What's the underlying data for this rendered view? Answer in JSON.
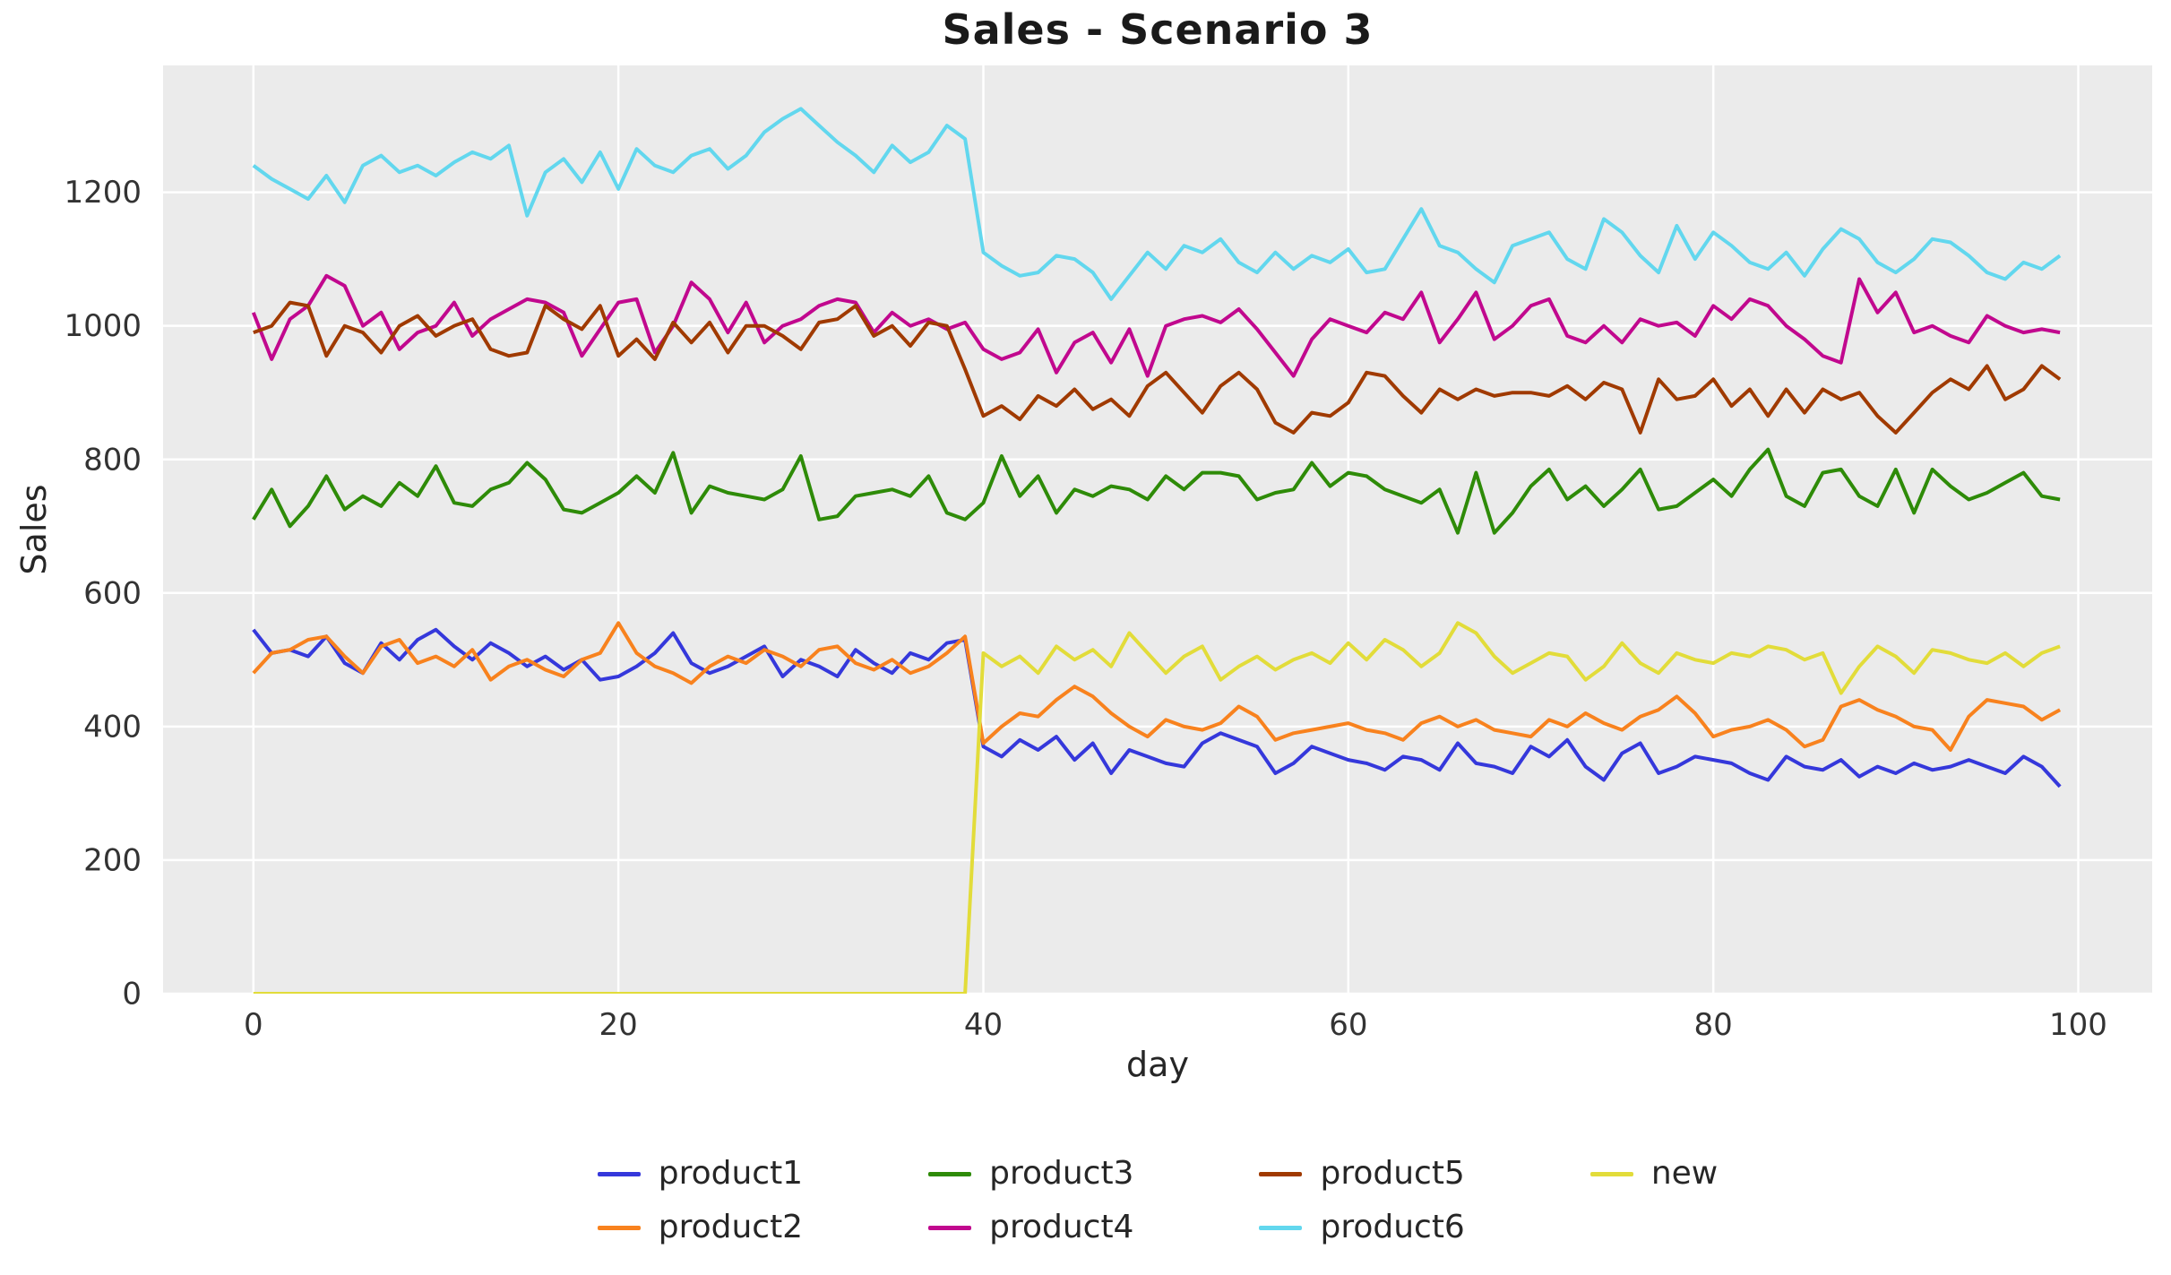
{
  "title": "Sales - Scenario 3",
  "chart_data": {
    "type": "line",
    "title": "Sales - Scenario 3",
    "xlabel": "day",
    "ylabel": "Sales",
    "x_start": 0,
    "x_step": 1,
    "x_ticks": [
      0,
      20,
      40,
      60,
      80,
      100
    ],
    "y_ticks": [
      0,
      200,
      400,
      600,
      800,
      1000,
      1200
    ],
    "xlim": [
      -4.95,
      104.05
    ],
    "ylim": [
      0,
      1390
    ],
    "grid": true,
    "plot_bg_color": "#ebebeb",
    "grid_color": "#ffffff",
    "tick_color": "#333333",
    "legend_position": "below-center",
    "series": [
      {
        "name": "product1",
        "color": "#3538db",
        "values": [
          545,
          510,
          515,
          505,
          535,
          495,
          480,
          525,
          500,
          530,
          545,
          520,
          500,
          525,
          510,
          490,
          505,
          485,
          500,
          470,
          475,
          490,
          510,
          540,
          495,
          480,
          490,
          505,
          520,
          475,
          500,
          490,
          475,
          515,
          495,
          480,
          510,
          500,
          525,
          530,
          370,
          355,
          380,
          365,
          385,
          350,
          375,
          330,
          365,
          355,
          345,
          340,
          375,
          390,
          380,
          370,
          330,
          345,
          370,
          360,
          350,
          345,
          335,
          355,
          350,
          335,
          375,
          345,
          340,
          330,
          370,
          355,
          380,
          340,
          320,
          360,
          375,
          330,
          340,
          355,
          350,
          345,
          330,
          320,
          355,
          340,
          335,
          350,
          325,
          340,
          330,
          345,
          335,
          340,
          350,
          340,
          330,
          355,
          340,
          310
        ]
      },
      {
        "name": "product2",
        "color": "#f8821e",
        "values": [
          480,
          510,
          515,
          530,
          535,
          505,
          480,
          520,
          530,
          495,
          505,
          490,
          515,
          470,
          490,
          500,
          485,
          475,
          500,
          510,
          555,
          510,
          490,
          480,
          465,
          490,
          505,
          495,
          515,
          505,
          490,
          515,
          520,
          495,
          485,
          500,
          480,
          490,
          510,
          535,
          375,
          400,
          420,
          415,
          440,
          460,
          445,
          420,
          400,
          385,
          410,
          400,
          395,
          405,
          430,
          415,
          380,
          390,
          395,
          400,
          405,
          395,
          390,
          380,
          405,
          415,
          400,
          410,
          395,
          390,
          385,
          410,
          400,
          420,
          405,
          395,
          415,
          425,
          445,
          420,
          385,
          395,
          400,
          410,
          395,
          370,
          380,
          430,
          440,
          425,
          415,
          400,
          395,
          365,
          415,
          440,
          435,
          430,
          410,
          425
        ]
      },
      {
        "name": "product3",
        "color": "#2e8b08",
        "values": [
          710,
          755,
          700,
          730,
          775,
          725,
          745,
          730,
          765,
          745,
          790,
          735,
          730,
          755,
          765,
          795,
          770,
          725,
          720,
          735,
          750,
          775,
          750,
          810,
          720,
          760,
          750,
          745,
          740,
          755,
          805,
          710,
          715,
          745,
          750,
          755,
          745,
          775,
          720,
          710,
          735,
          805,
          745,
          775,
          720,
          755,
          745,
          760,
          755,
          740,
          775,
          755,
          780,
          780,
          775,
          740,
          750,
          755,
          795,
          760,
          780,
          775,
          755,
          745,
          735,
          755,
          690,
          780,
          690,
          720,
          760,
          785,
          740,
          760,
          730,
          755,
          785,
          725,
          730,
          750,
          770,
          745,
          785,
          815,
          745,
          730,
          780,
          785,
          745,
          730,
          785,
          720,
          785,
          760,
          740,
          750,
          765,
          780,
          745,
          740
        ]
      },
      {
        "name": "product4",
        "color": "#c1088e",
        "values": [
          1020,
          950,
          1010,
          1030,
          1075,
          1060,
          1000,
          1020,
          965,
          990,
          1000,
          1035,
          985,
          1010,
          1025,
          1040,
          1035,
          1020,
          955,
          995,
          1035,
          1040,
          960,
          1000,
          1065,
          1040,
          990,
          1035,
          975,
          1000,
          1010,
          1030,
          1040,
          1035,
          990,
          1020,
          1000,
          1010,
          995,
          1005,
          965,
          950,
          960,
          995,
          930,
          975,
          990,
          945,
          995,
          925,
          1000,
          1010,
          1015,
          1005,
          1025,
          995,
          960,
          925,
          980,
          1010,
          1000,
          990,
          1020,
          1010,
          1050,
          975,
          1010,
          1050,
          980,
          1000,
          1030,
          1040,
          985,
          975,
          1000,
          975,
          1010,
          1000,
          1005,
          985,
          1030,
          1010,
          1040,
          1030,
          1000,
          980,
          955,
          945,
          1070,
          1020,
          1050,
          990,
          1000,
          985,
          975,
          1015,
          1000,
          990,
          995,
          990
        ]
      },
      {
        "name": "product5",
        "color": "#a03a00",
        "values": [
          990,
          1000,
          1035,
          1030,
          955,
          1000,
          990,
          960,
          1000,
          1015,
          985,
          1000,
          1010,
          965,
          955,
          960,
          1030,
          1010,
          995,
          1030,
          955,
          980,
          950,
          1005,
          975,
          1005,
          960,
          1000,
          1000,
          985,
          965,
          1005,
          1010,
          1030,
          985,
          1000,
          970,
          1005,
          1000,
          935,
          865,
          880,
          860,
          895,
          880,
          905,
          875,
          890,
          865,
          910,
          930,
          900,
          870,
          910,
          930,
          905,
          855,
          840,
          870,
          865,
          885,
          930,
          925,
          895,
          870,
          905,
          890,
          905,
          895,
          900,
          900,
          895,
          910,
          890,
          915,
          905,
          840,
          920,
          890,
          895,
          920,
          880,
          905,
          865,
          905,
          870,
          905,
          890,
          900,
          865,
          840,
          870,
          900,
          920,
          905,
          940,
          890,
          905,
          940,
          920
        ]
      },
      {
        "name": "product6",
        "color": "#62d7ee",
        "values": [
          1240,
          1220,
          1205,
          1190,
          1225,
          1185,
          1240,
          1255,
          1230,
          1240,
          1225,
          1245,
          1260,
          1250,
          1270,
          1165,
          1230,
          1250,
          1215,
          1260,
          1205,
          1265,
          1240,
          1230,
          1255,
          1265,
          1235,
          1255,
          1290,
          1310,
          1325,
          1300,
          1275,
          1255,
          1230,
          1270,
          1245,
          1260,
          1300,
          1280,
          1110,
          1090,
          1075,
          1080,
          1105,
          1100,
          1080,
          1040,
          1075,
          1110,
          1085,
          1120,
          1110,
          1130,
          1095,
          1080,
          1110,
          1085,
          1105,
          1095,
          1115,
          1080,
          1085,
          1130,
          1175,
          1120,
          1110,
          1085,
          1065,
          1120,
          1130,
          1140,
          1100,
          1085,
          1160,
          1140,
          1105,
          1080,
          1150,
          1100,
          1140,
          1120,
          1095,
          1085,
          1110,
          1075,
          1115,
          1145,
          1130,
          1095,
          1080,
          1100,
          1130,
          1125,
          1105,
          1080,
          1070,
          1095,
          1085,
          1105
        ]
      },
      {
        "name": "new",
        "color": "#e2dc3a",
        "values": [
          0,
          0,
          0,
          0,
          0,
          0,
          0,
          0,
          0,
          0,
          0,
          0,
          0,
          0,
          0,
          0,
          0,
          0,
          0,
          0,
          0,
          0,
          0,
          0,
          0,
          0,
          0,
          0,
          0,
          0,
          0,
          0,
          0,
          0,
          0,
          0,
          0,
          0,
          0,
          0,
          510,
          490,
          505,
          480,
          520,
          500,
          515,
          490,
          540,
          510,
          480,
          505,
          520,
          470,
          490,
          505,
          485,
          500,
          510,
          495,
          525,
          500,
          530,
          515,
          490,
          510,
          555,
          540,
          505,
          480,
          495,
          510,
          505,
          470,
          490,
          525,
          495,
          480,
          510,
          500,
          495,
          510,
          505,
          520,
          515,
          500,
          510,
          450,
          490,
          520,
          505,
          480,
          515,
          510,
          500,
          495,
          510,
          490,
          510,
          520
        ]
      }
    ],
    "legend_columns": [
      [
        0,
        1
      ],
      [
        2,
        3
      ],
      [
        4,
        5
      ],
      [
        6
      ]
    ]
  }
}
